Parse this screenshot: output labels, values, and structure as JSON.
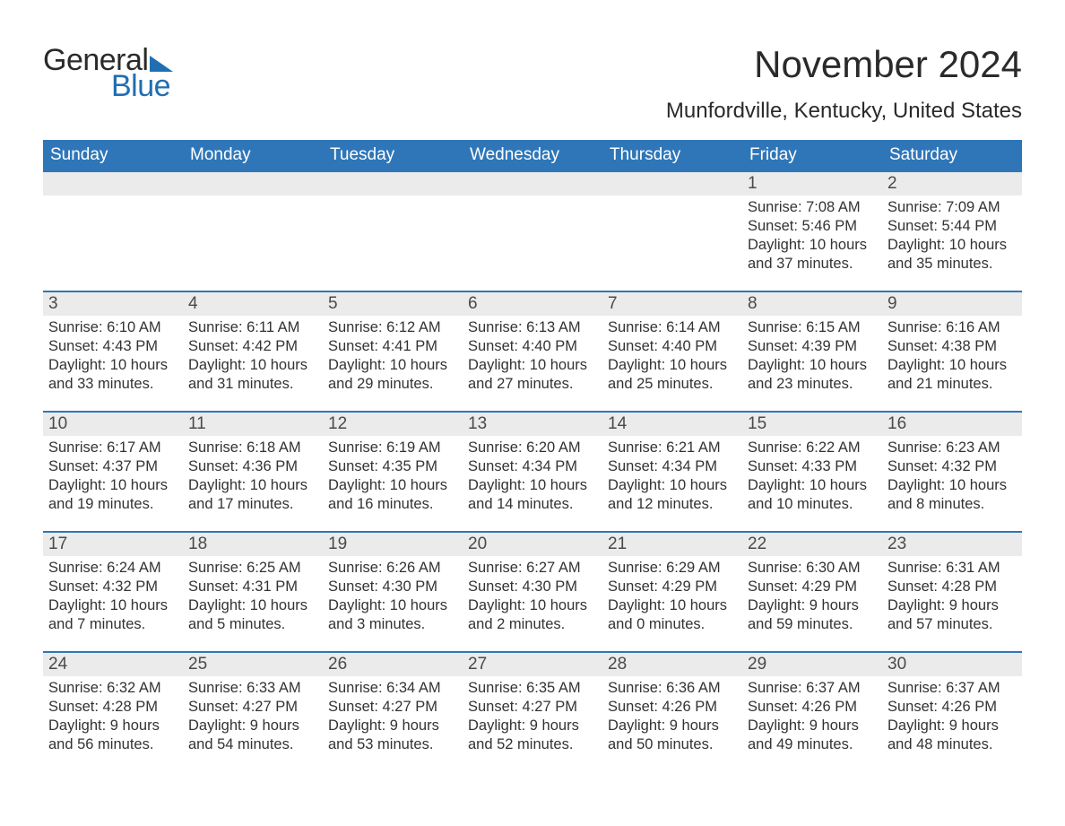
{
  "brand": {
    "text1": "General",
    "text2": "Blue",
    "accent_color": "#1f6fb2"
  },
  "title": "November 2024",
  "location": "Munfordville, Kentucky, United States",
  "calendar": {
    "type": "table",
    "header_bg": "#2f76b8",
    "header_fg": "#ffffff",
    "row_divider_color": "#2f76b8",
    "daynum_bg": "#ebebeb",
    "body_bg": "#ffffff",
    "text_color": "#333333",
    "font_family": "Arial",
    "header_fontsize": 19,
    "daynum_fontsize": 19,
    "body_fontsize": 16.5,
    "columns": [
      "Sunday",
      "Monday",
      "Tuesday",
      "Wednesday",
      "Thursday",
      "Friday",
      "Saturday"
    ],
    "weeks": [
      [
        null,
        null,
        null,
        null,
        null,
        {
          "n": "1",
          "sunrise": "7:08 AM",
          "sunset": "5:46 PM",
          "day": "10 hours and 37 minutes."
        },
        {
          "n": "2",
          "sunrise": "7:09 AM",
          "sunset": "5:44 PM",
          "day": "10 hours and 35 minutes."
        }
      ],
      [
        {
          "n": "3",
          "sunrise": "6:10 AM",
          "sunset": "4:43 PM",
          "day": "10 hours and 33 minutes."
        },
        {
          "n": "4",
          "sunrise": "6:11 AM",
          "sunset": "4:42 PM",
          "day": "10 hours and 31 minutes."
        },
        {
          "n": "5",
          "sunrise": "6:12 AM",
          "sunset": "4:41 PM",
          "day": "10 hours and 29 minutes."
        },
        {
          "n": "6",
          "sunrise": "6:13 AM",
          "sunset": "4:40 PM",
          "day": "10 hours and 27 minutes."
        },
        {
          "n": "7",
          "sunrise": "6:14 AM",
          "sunset": "4:40 PM",
          "day": "10 hours and 25 minutes."
        },
        {
          "n": "8",
          "sunrise": "6:15 AM",
          "sunset": "4:39 PM",
          "day": "10 hours and 23 minutes."
        },
        {
          "n": "9",
          "sunrise": "6:16 AM",
          "sunset": "4:38 PM",
          "day": "10 hours and 21 minutes."
        }
      ],
      [
        {
          "n": "10",
          "sunrise": "6:17 AM",
          "sunset": "4:37 PM",
          "day": "10 hours and 19 minutes."
        },
        {
          "n": "11",
          "sunrise": "6:18 AM",
          "sunset": "4:36 PM",
          "day": "10 hours and 17 minutes."
        },
        {
          "n": "12",
          "sunrise": "6:19 AM",
          "sunset": "4:35 PM",
          "day": "10 hours and 16 minutes."
        },
        {
          "n": "13",
          "sunrise": "6:20 AM",
          "sunset": "4:34 PM",
          "day": "10 hours and 14 minutes."
        },
        {
          "n": "14",
          "sunrise": "6:21 AM",
          "sunset": "4:34 PM",
          "day": "10 hours and 12 minutes."
        },
        {
          "n": "15",
          "sunrise": "6:22 AM",
          "sunset": "4:33 PM",
          "day": "10 hours and 10 minutes."
        },
        {
          "n": "16",
          "sunrise": "6:23 AM",
          "sunset": "4:32 PM",
          "day": "10 hours and 8 minutes."
        }
      ],
      [
        {
          "n": "17",
          "sunrise": "6:24 AM",
          "sunset": "4:32 PM",
          "day": "10 hours and 7 minutes."
        },
        {
          "n": "18",
          "sunrise": "6:25 AM",
          "sunset": "4:31 PM",
          "day": "10 hours and 5 minutes."
        },
        {
          "n": "19",
          "sunrise": "6:26 AM",
          "sunset": "4:30 PM",
          "day": "10 hours and 3 minutes."
        },
        {
          "n": "20",
          "sunrise": "6:27 AM",
          "sunset": "4:30 PM",
          "day": "10 hours and 2 minutes."
        },
        {
          "n": "21",
          "sunrise": "6:29 AM",
          "sunset": "4:29 PM",
          "day": "10 hours and 0 minutes."
        },
        {
          "n": "22",
          "sunrise": "6:30 AM",
          "sunset": "4:29 PM",
          "day": "9 hours and 59 minutes."
        },
        {
          "n": "23",
          "sunrise": "6:31 AM",
          "sunset": "4:28 PM",
          "day": "9 hours and 57 minutes."
        }
      ],
      [
        {
          "n": "24",
          "sunrise": "6:32 AM",
          "sunset": "4:28 PM",
          "day": "9 hours and 56 minutes."
        },
        {
          "n": "25",
          "sunrise": "6:33 AM",
          "sunset": "4:27 PM",
          "day": "9 hours and 54 minutes."
        },
        {
          "n": "26",
          "sunrise": "6:34 AM",
          "sunset": "4:27 PM",
          "day": "9 hours and 53 minutes."
        },
        {
          "n": "27",
          "sunrise": "6:35 AM",
          "sunset": "4:27 PM",
          "day": "9 hours and 52 minutes."
        },
        {
          "n": "28",
          "sunrise": "6:36 AM",
          "sunset": "4:26 PM",
          "day": "9 hours and 50 minutes."
        },
        {
          "n": "29",
          "sunrise": "6:37 AM",
          "sunset": "4:26 PM",
          "day": "9 hours and 49 minutes."
        },
        {
          "n": "30",
          "sunrise": "6:37 AM",
          "sunset": "4:26 PM",
          "day": "9 hours and 48 minutes."
        }
      ]
    ],
    "labels": {
      "sunrise": "Sunrise: ",
      "sunset": "Sunset: ",
      "daylight": "Daylight: "
    }
  }
}
